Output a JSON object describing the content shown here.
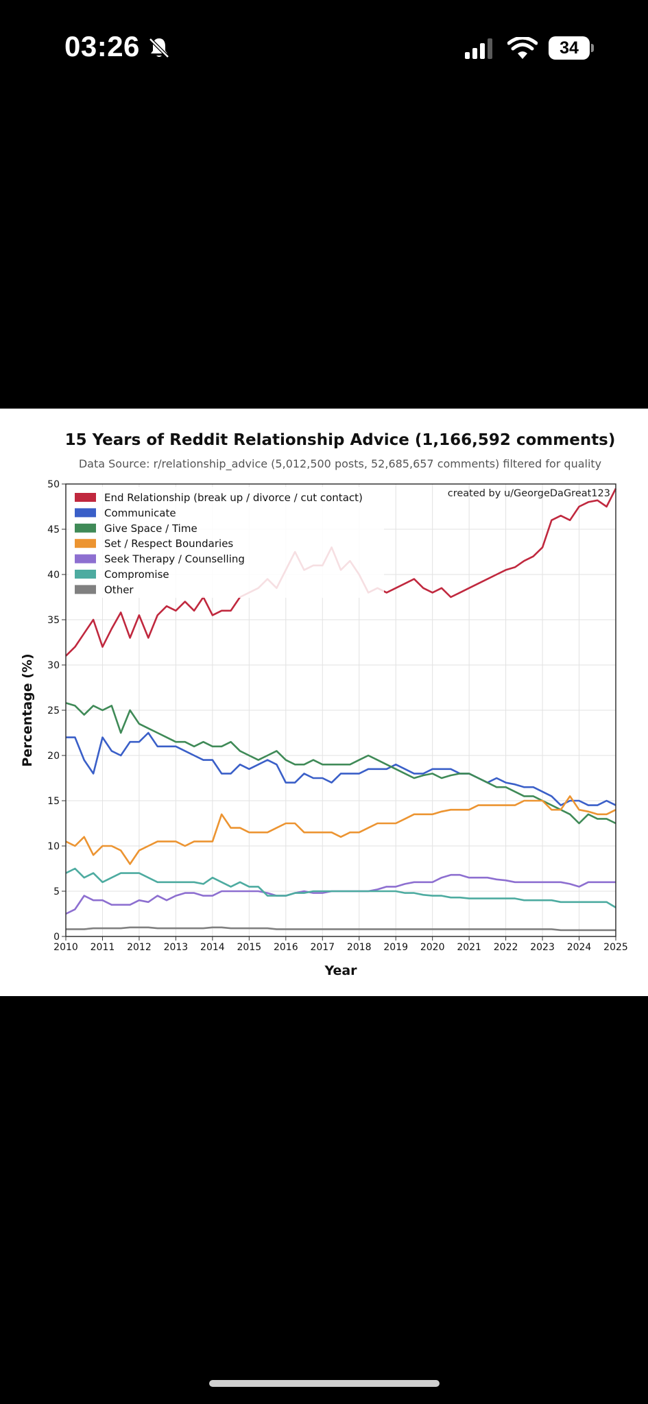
{
  "status_bar": {
    "time": "03:26",
    "battery": "34"
  },
  "chart_data": {
    "type": "line",
    "title": "15 Years of Reddit Relationship Advice (1,166,592 comments)",
    "subtitle": "Data Source: r/relationship_advice (5,012,500 posts, 52,685,657 comments) filtered for quality",
    "annotation": "created by u/GeorgeDaGreat123",
    "xlabel": "Year",
    "ylabel": "Percentage (%)",
    "xlim": [
      2010,
      2025
    ],
    "ylim": [
      0,
      50
    ],
    "xticks": [
      "2010",
      "2011",
      "2012",
      "2013",
      "2014",
      "2015",
      "2016",
      "2017",
      "2018",
      "2019",
      "2020",
      "2021",
      "2022",
      "2023",
      "2024",
      "2025"
    ],
    "yticks": [
      "0",
      "5",
      "10",
      "15",
      "20",
      "25",
      "30",
      "35",
      "40",
      "45",
      "50"
    ],
    "grid": true,
    "legend_position": "top-left",
    "x": [
      2010.0,
      2010.25,
      2010.5,
      2010.75,
      2011.0,
      2011.25,
      2011.5,
      2011.75,
      2012.0,
      2012.25,
      2012.5,
      2012.75,
      2013.0,
      2013.25,
      2013.5,
      2013.75,
      2014.0,
      2014.25,
      2014.5,
      2014.75,
      2015.0,
      2015.25,
      2015.5,
      2015.75,
      2016.0,
      2016.25,
      2016.5,
      2016.75,
      2017.0,
      2017.25,
      2017.5,
      2017.75,
      2018.0,
      2018.25,
      2018.5,
      2018.75,
      2019.0,
      2019.25,
      2019.5,
      2019.75,
      2020.0,
      2020.25,
      2020.5,
      2020.75,
      2021.0,
      2021.25,
      2021.5,
      2021.75,
      2022.0,
      2022.25,
      2022.5,
      2022.75,
      2023.0,
      2023.25,
      2023.5,
      2023.75,
      2024.0,
      2024.25,
      2024.5,
      2024.75,
      2025.0
    ],
    "series": [
      {
        "name": "End Relationship (break up / divorce / cut contact)",
        "color": "#c0283e",
        "values": [
          31.0,
          32.0,
          33.5,
          35.0,
          32.0,
          34.0,
          35.8,
          33.0,
          35.5,
          33.0,
          35.5,
          36.5,
          36.0,
          37.0,
          36.0,
          37.5,
          35.5,
          36.0,
          36.0,
          37.5,
          38.0,
          38.5,
          39.5,
          38.5,
          40.5,
          42.5,
          40.5,
          41.0,
          41.0,
          43.0,
          40.5,
          41.5,
          40.0,
          38.0,
          38.5,
          38.0,
          38.5,
          39.0,
          39.5,
          38.5,
          38.0,
          38.5,
          37.5,
          38.0,
          38.5,
          39.0,
          39.5,
          40.0,
          40.5,
          40.8,
          41.5,
          42.0,
          43.0,
          46.0,
          46.5,
          46.0,
          47.5,
          48.0,
          48.2,
          47.5,
          49.5
        ]
      },
      {
        "name": "Communicate",
        "color": "#3a5fc8",
        "values": [
          22.0,
          22.0,
          19.5,
          18.0,
          22.0,
          20.5,
          20.0,
          21.5,
          21.5,
          22.5,
          21.0,
          21.0,
          21.0,
          20.5,
          20.0,
          19.5,
          19.5,
          18.0,
          18.0,
          19.0,
          18.5,
          19.0,
          19.5,
          19.0,
          17.0,
          17.0,
          18.0,
          17.5,
          17.5,
          17.0,
          18.0,
          18.0,
          18.0,
          18.5,
          18.5,
          18.5,
          19.0,
          18.5,
          18.0,
          18.0,
          18.5,
          18.5,
          18.5,
          18.0,
          18.0,
          17.5,
          17.0,
          17.5,
          17.0,
          16.8,
          16.5,
          16.5,
          16.0,
          15.5,
          14.5,
          15.0,
          15.0,
          14.5,
          14.5,
          15.0,
          14.5
        ]
      },
      {
        "name": "Give Space / Time",
        "color": "#3f8a57",
        "values": [
          25.8,
          25.5,
          24.5,
          25.5,
          25.0,
          25.5,
          22.5,
          25.0,
          23.5,
          23.0,
          22.5,
          22.0,
          21.5,
          21.5,
          21.0,
          21.5,
          21.0,
          21.0,
          21.5,
          20.5,
          20.0,
          19.5,
          20.0,
          20.5,
          19.5,
          19.0,
          19.0,
          19.5,
          19.0,
          19.0,
          19.0,
          19.0,
          19.5,
          20.0,
          19.5,
          19.0,
          18.5,
          18.0,
          17.5,
          17.8,
          18.0,
          17.5,
          17.8,
          18.0,
          18.0,
          17.5,
          17.0,
          16.5,
          16.5,
          16.0,
          15.5,
          15.5,
          15.0,
          14.5,
          14.0,
          13.5,
          12.5,
          13.5,
          13.0,
          13.0,
          12.5
        ]
      },
      {
        "name": "Set / Respect Boundaries",
        "color": "#ec9431",
        "values": [
          10.5,
          10.0,
          11.0,
          9.0,
          10.0,
          10.0,
          9.5,
          8.0,
          9.5,
          10.0,
          10.5,
          10.5,
          10.5,
          10.0,
          10.5,
          10.5,
          10.5,
          13.5,
          12.0,
          12.0,
          11.5,
          11.5,
          11.5,
          12.0,
          12.5,
          12.5,
          11.5,
          11.5,
          11.5,
          11.5,
          11.0,
          11.5,
          11.5,
          12.0,
          12.5,
          12.5,
          12.5,
          13.0,
          13.5,
          13.5,
          13.5,
          13.8,
          14.0,
          14.0,
          14.0,
          14.5,
          14.5,
          14.5,
          14.5,
          14.5,
          15.0,
          15.0,
          15.0,
          14.0,
          14.0,
          15.5,
          14.0,
          13.8,
          13.5,
          13.5,
          14.0
        ]
      },
      {
        "name": "Seek Therapy / Counselling",
        "color": "#8d6fd0",
        "values": [
          2.5,
          3.0,
          4.5,
          4.0,
          4.0,
          3.5,
          3.5,
          3.5,
          4.0,
          3.8,
          4.5,
          4.0,
          4.5,
          4.8,
          4.8,
          4.5,
          4.5,
          5.0,
          5.0,
          5.0,
          5.0,
          5.0,
          4.8,
          4.5,
          4.5,
          4.8,
          5.0,
          4.8,
          4.8,
          5.0,
          5.0,
          5.0,
          5.0,
          5.0,
          5.2,
          5.5,
          5.5,
          5.8,
          6.0,
          6.0,
          6.0,
          6.5,
          6.8,
          6.8,
          6.5,
          6.5,
          6.5,
          6.3,
          6.2,
          6.0,
          6.0,
          6.0,
          6.0,
          6.0,
          6.0,
          5.8,
          5.5,
          6.0,
          6.0,
          6.0,
          6.0
        ]
      },
      {
        "name": "Compromise",
        "color": "#4daba0",
        "values": [
          7.0,
          7.5,
          6.5,
          7.0,
          6.0,
          6.5,
          7.0,
          7.0,
          7.0,
          6.5,
          6.0,
          6.0,
          6.0,
          6.0,
          6.0,
          5.8,
          6.5,
          6.0,
          5.5,
          6.0,
          5.5,
          5.5,
          4.5,
          4.5,
          4.5,
          4.8,
          4.8,
          5.0,
          5.0,
          5.0,
          5.0,
          5.0,
          5.0,
          5.0,
          5.0,
          5.0,
          5.0,
          4.8,
          4.8,
          4.6,
          4.5,
          4.5,
          4.3,
          4.3,
          4.2,
          4.2,
          4.2,
          4.2,
          4.2,
          4.2,
          4.0,
          4.0,
          4.0,
          4.0,
          3.8,
          3.8,
          3.8,
          3.8,
          3.8,
          3.8,
          3.2
        ]
      },
      {
        "name": "Other",
        "color": "#808080",
        "values": [
          0.8,
          0.8,
          0.8,
          0.9,
          0.9,
          0.9,
          0.9,
          1.0,
          1.0,
          1.0,
          0.9,
          0.9,
          0.9,
          0.9,
          0.9,
          0.9,
          1.0,
          1.0,
          0.9,
          0.9,
          0.9,
          0.9,
          0.9,
          0.8,
          0.8,
          0.8,
          0.8,
          0.8,
          0.8,
          0.8,
          0.8,
          0.8,
          0.8,
          0.8,
          0.8,
          0.8,
          0.8,
          0.8,
          0.8,
          0.8,
          0.8,
          0.8,
          0.8,
          0.8,
          0.8,
          0.8,
          0.8,
          0.8,
          0.8,
          0.8,
          0.8,
          0.8,
          0.8,
          0.8,
          0.7,
          0.7,
          0.7,
          0.7,
          0.7,
          0.7,
          0.7
        ]
      }
    ]
  }
}
